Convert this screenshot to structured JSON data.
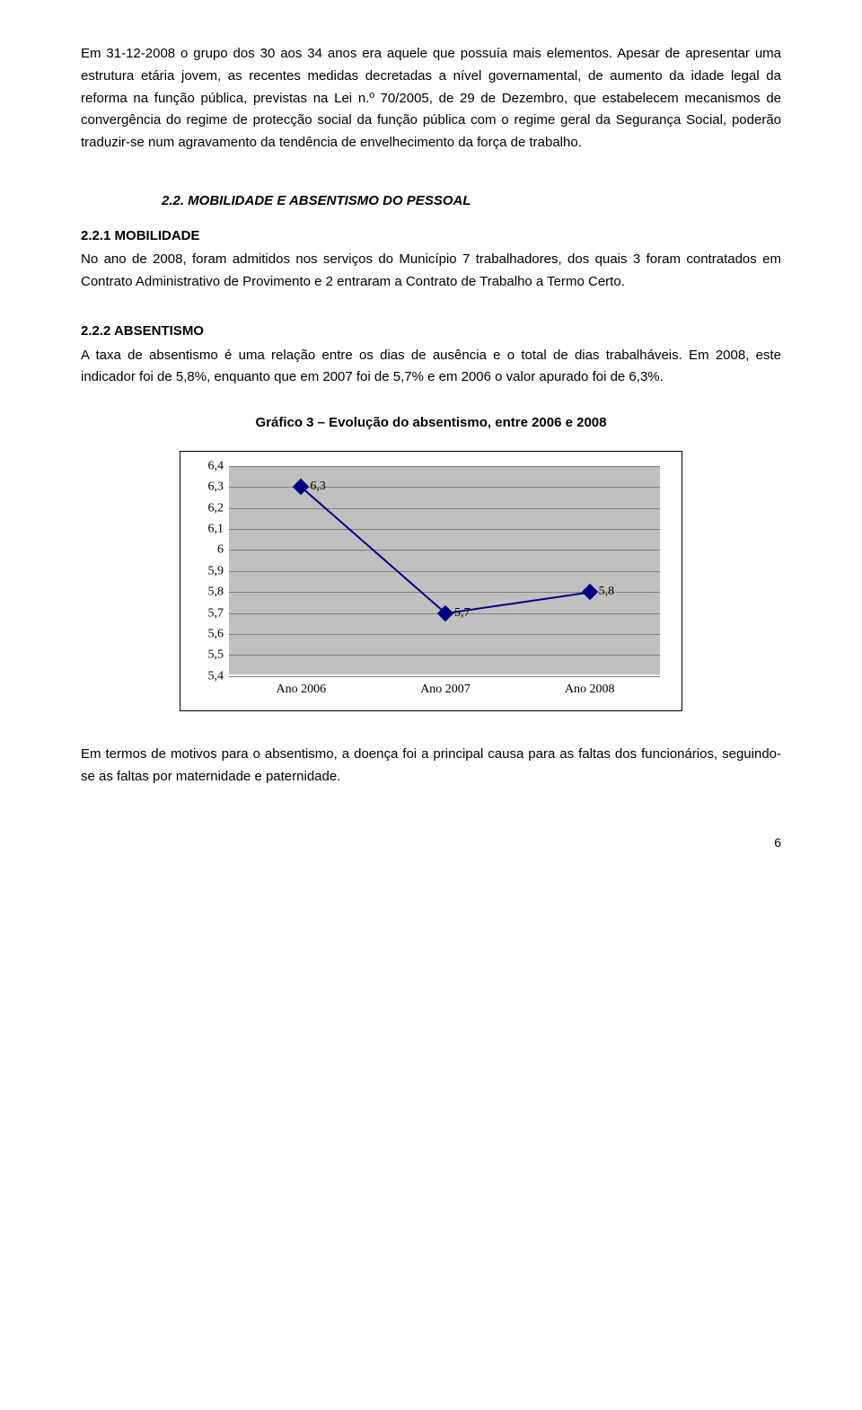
{
  "paragraphs": {
    "p1": "Em 31-12-2008 o grupo dos 30 aos 34 anos era aquele que possuía mais elementos. Apesar de apresentar uma estrutura etária jovem, as recentes medidas decretadas a nível governamental, de aumento da idade legal da reforma na função pública, previstas na Lei n.º 70/2005, de 29 de Dezembro, que estabelecem mecanismos de convergência do regime de protecção social da função pública com o regime geral da Segurança Social, poderão traduzir-se num agravamento da tendência de envelhecimento da força de trabalho."
  },
  "headings": {
    "h22": "2.2. MOBILIDADE E ABSENTISMO DO PESSOAL",
    "h221": "2.2.1 MOBILIDADE",
    "h222": "2.2.2 ABSENTISMO"
  },
  "mobilidade": {
    "text": "No ano de 2008, foram admitidos nos serviços do Município 7 trabalhadores, dos quais 3 foram contratados em Contrato Administrativo de Provimento e 2 entraram a Contrato de Trabalho a Termo Certo."
  },
  "absentismo": {
    "p1": "A taxa de absentismo é uma relação entre os dias de ausência e o total de dias trabalháveis. Em 2008, este indicador foi de 5,8%, enquanto que em 2007 foi de 5,7% e em 2006 o valor apurado foi de 6,3%.",
    "p2": "Em termos de motivos para o absentismo, a doença foi a principal causa para as faltas dos funcionários, seguindo-se as faltas por maternidade e paternidade."
  },
  "chart": {
    "title": "Gráfico 3 – Evolução do absentismo, entre 2006 e 2008",
    "type": "line",
    "categories": [
      "Ano 2006",
      "Ano 2007",
      "Ano 2008"
    ],
    "values": [
      6.3,
      5.7,
      5.8
    ],
    "value_labels": [
      "6,3",
      "5,7",
      "5,8"
    ],
    "ylim": [
      5.4,
      6.4
    ],
    "ytick_step": 0.1,
    "ytick_labels": [
      "5,4",
      "5,5",
      "5,6",
      "5,7",
      "5,8",
      "5,9",
      "6",
      "6,1",
      "6,2",
      "6,3",
      "6,4"
    ],
    "line_color": "#000080",
    "marker_color": "#000080",
    "marker_shape": "diamond",
    "marker_size": 13,
    "line_width": 2,
    "plot_background": "#c0c0c0",
    "grid_color": "#808080",
    "chart_border_color": "#000000",
    "chart_background": "#ffffff",
    "axis_font": "Times New Roman",
    "axis_fontsize": 14
  },
  "page_number": "6"
}
